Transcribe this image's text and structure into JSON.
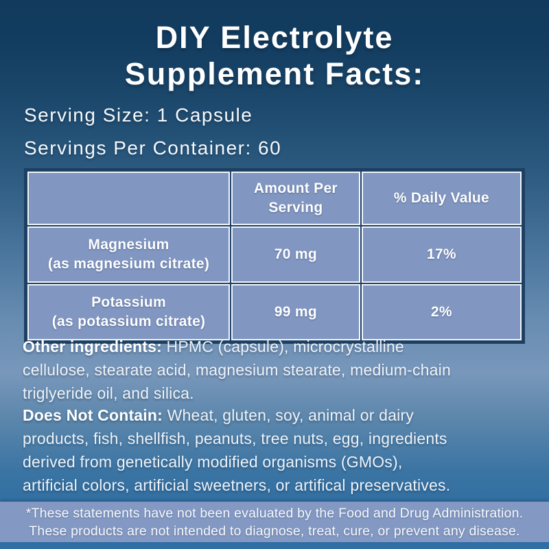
{
  "page": {
    "title_line1": "DIY Electrolyte",
    "title_line2": "Supplement Facts:",
    "serving_size": "Serving Size: 1 Capsule",
    "servings_per_container": "Servings Per Container: 60"
  },
  "table": {
    "headers": [
      "",
      "Amount Per Serving",
      "% Daily Value"
    ],
    "rows": [
      {
        "nutrient": "Magnesium",
        "source": "(as magnesium citrate)",
        "amount": "70 mg",
        "daily_value": "17%"
      },
      {
        "nutrient": "Potassium",
        "source": "(as potassium citrate)",
        "amount": "99 mg",
        "daily_value": "2%"
      }
    ]
  },
  "other_ingredients": {
    "label": "Other ingredients:",
    "text": " HPMC (capsule), microcrystalline\ncellulose, stearate acid, magnesium stearate, medium-chain\ntriglyeride oil, and silica."
  },
  "does_not_contain": {
    "label": "Does Not Contain:",
    "text": " Wheat, gluten, soy, animal or dairy\nproducts, fish, shellfish, peanuts, tree nuts, egg, ingredients\nderived from genetically modified organisms (GMOs),\nartificial colors, artificial sweetners, or artifical preservatives."
  },
  "disclaimer": {
    "line1": "*These statements have not been evaluated by the Food and Drug Administration.",
    "line2": "These products are not intended to diagnose, treat, cure, or prevent any disease."
  },
  "colors": {
    "background_top_navy": "#113a5d",
    "background_mid_blue": "#7897bb",
    "background_bottom_blue": "#2e6da1",
    "table_cell_periwinkle": "#8197c2",
    "table_border_navy": "#1d4062",
    "table_inner_line_white": "#f2f6fb",
    "disclaimer_band": "#8399c3",
    "text_white": "#ffffff"
  }
}
